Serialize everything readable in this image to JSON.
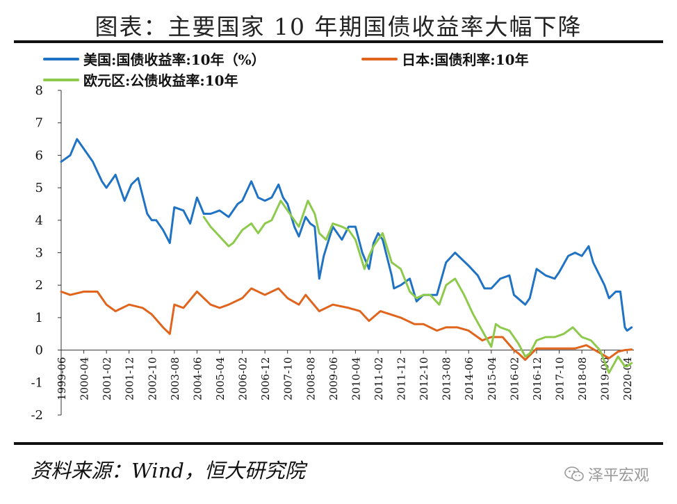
{
  "title": "图表：主要国家 10 年期国债收益率大幅下降",
  "source": "资料来源：Wind，恒大研究院",
  "watermark": "泽平宏观",
  "chart_data": {
    "type": "line",
    "x_labels": [
      "1999-06",
      "2000-04",
      "2001-02",
      "2001-12",
      "2002-10",
      "2003-08",
      "2004-06",
      "2005-04",
      "2006-02",
      "2006-12",
      "2007-10",
      "2008-08",
      "2009-06",
      "2010-04",
      "2011-02",
      "2011-12",
      "2012-10",
      "2013-08",
      "2014-06",
      "2015-04",
      "2016-02",
      "2016-12",
      "2017-10",
      "2018-08",
      "2019-06",
      "2020-04"
    ],
    "ylim": [
      -2,
      8
    ],
    "yticks": [
      -2,
      -1,
      0,
      1,
      2,
      3,
      4,
      5,
      6,
      7,
      8
    ],
    "series": [
      {
        "name": "美国:国债收益率:10年（%）",
        "color": "#1f72c4",
        "x": [
          "1999-06",
          "1999-10",
          "2000-01",
          "2000-04",
          "2000-08",
          "2000-12",
          "2001-02",
          "2001-06",
          "2001-10",
          "2002-01",
          "2002-04",
          "2002-08",
          "2002-10",
          "2002-12",
          "2003-03",
          "2003-06",
          "2003-08",
          "2003-12",
          "2004-03",
          "2004-06",
          "2004-09",
          "2004-12",
          "2005-04",
          "2005-08",
          "2005-12",
          "2006-02",
          "2006-06",
          "2006-09",
          "2006-12",
          "2007-03",
          "2007-06",
          "2007-08",
          "2007-10",
          "2008-01",
          "2008-03",
          "2008-06",
          "2008-08",
          "2008-10",
          "2008-12",
          "2009-02",
          "2009-06",
          "2009-10",
          "2010-01",
          "2010-04",
          "2010-07",
          "2010-10",
          "2010-12",
          "2011-02",
          "2011-04",
          "2011-08",
          "2011-09",
          "2011-12",
          "2012-04",
          "2012-07",
          "2012-10",
          "2012-12",
          "2013-04",
          "2013-08",
          "2013-12",
          "2014-06",
          "2014-10",
          "2015-01",
          "2015-04",
          "2015-08",
          "2015-12",
          "2016-02",
          "2016-07",
          "2016-09",
          "2016-12",
          "2017-04",
          "2017-08",
          "2017-10",
          "2018-02",
          "2018-05",
          "2018-08",
          "2018-11",
          "2019-01",
          "2019-06",
          "2019-08",
          "2019-11",
          "2020-01",
          "2020-03",
          "2020-04",
          "2020-06"
        ],
        "values": [
          5.8,
          6.0,
          6.5,
          6.2,
          5.8,
          5.2,
          5.0,
          5.4,
          4.6,
          5.1,
          5.3,
          4.2,
          4.0,
          4.0,
          3.7,
          3.3,
          4.4,
          4.3,
          3.9,
          4.7,
          4.2,
          4.2,
          4.3,
          4.1,
          4.5,
          4.6,
          5.2,
          4.7,
          4.6,
          4.7,
          5.1,
          4.7,
          4.5,
          3.8,
          3.5,
          4.1,
          3.9,
          3.8,
          2.2,
          2.9,
          3.8,
          3.4,
          3.8,
          3.8,
          3.0,
          2.5,
          3.3,
          3.6,
          3.4,
          2.3,
          1.9,
          2.0,
          2.2,
          1.5,
          1.7,
          1.7,
          1.7,
          2.7,
          3.0,
          2.6,
          2.3,
          1.9,
          1.9,
          2.2,
          2.3,
          1.7,
          1.4,
          1.6,
          2.5,
          2.3,
          2.2,
          2.4,
          2.9,
          3.0,
          2.9,
          3.2,
          2.7,
          2.0,
          1.6,
          1.8,
          1.8,
          0.7,
          0.6,
          0.7
        ]
      },
      {
        "name": "日本:国债利率:10年",
        "color": "#e0641c",
        "x": [
          "1999-06",
          "1999-10",
          "2000-04",
          "2000-10",
          "2001-02",
          "2001-06",
          "2001-12",
          "2002-06",
          "2002-10",
          "2003-03",
          "2003-06",
          "2003-08",
          "2003-12",
          "2004-06",
          "2004-12",
          "2005-04",
          "2005-08",
          "2006-02",
          "2006-06",
          "2006-12",
          "2007-06",
          "2007-10",
          "2008-03",
          "2008-06",
          "2008-12",
          "2009-06",
          "2010-01",
          "2010-06",
          "2010-10",
          "2011-03",
          "2011-12",
          "2012-06",
          "2012-10",
          "2013-04",
          "2013-08",
          "2014-01",
          "2014-06",
          "2014-12",
          "2015-04",
          "2015-09",
          "2016-02",
          "2016-04",
          "2016-07",
          "2016-12",
          "2017-06",
          "2017-10",
          "2018-05",
          "2018-10",
          "2019-03",
          "2019-08",
          "2019-12",
          "2020-03",
          "2020-06"
        ],
        "values": [
          1.8,
          1.7,
          1.8,
          1.8,
          1.4,
          1.2,
          1.4,
          1.3,
          1.1,
          0.7,
          0.5,
          1.4,
          1.3,
          1.8,
          1.4,
          1.3,
          1.4,
          1.6,
          1.9,
          1.7,
          1.9,
          1.6,
          1.4,
          1.7,
          1.2,
          1.4,
          1.3,
          1.2,
          0.9,
          1.2,
          1.0,
          0.8,
          0.8,
          0.6,
          0.7,
          0.7,
          0.6,
          0.3,
          0.4,
          0.4,
          0.0,
          -0.1,
          -0.3,
          0.05,
          0.05,
          0.05,
          0.05,
          0.15,
          -0.05,
          -0.25,
          -0.05,
          0.0,
          0.02
        ]
      },
      {
        "name": "欧元区:公债收益率:10年",
        "color": "#8dca4c",
        "x": [
          "2004-09",
          "2004-12",
          "2005-04",
          "2005-08",
          "2005-10",
          "2006-02",
          "2006-06",
          "2006-09",
          "2006-12",
          "2007-03",
          "2007-07",
          "2007-10",
          "2008-01",
          "2008-03",
          "2008-07",
          "2008-10",
          "2008-12",
          "2009-03",
          "2009-06",
          "2009-10",
          "2010-01",
          "2010-04",
          "2010-08",
          "2010-10",
          "2010-12",
          "2011-04",
          "2011-08",
          "2011-12",
          "2012-04",
          "2012-07",
          "2012-10",
          "2013-01",
          "2013-05",
          "2013-08",
          "2013-12",
          "2014-04",
          "2014-08",
          "2014-12",
          "2015-04",
          "2015-06",
          "2015-08",
          "2015-12",
          "2016-04",
          "2016-07",
          "2016-09",
          "2016-12",
          "2017-04",
          "2017-08",
          "2017-12",
          "2018-04",
          "2018-08",
          "2018-12",
          "2019-04",
          "2019-08",
          "2019-12",
          "2020-03",
          "2020-04",
          "2020-06"
        ],
        "values": [
          4.1,
          3.8,
          3.5,
          3.2,
          3.3,
          3.7,
          3.9,
          3.6,
          3.9,
          4.0,
          4.6,
          4.3,
          4.0,
          3.8,
          4.6,
          4.2,
          3.6,
          3.4,
          3.9,
          3.8,
          3.7,
          3.4,
          2.5,
          2.9,
          3.2,
          3.6,
          2.7,
          2.5,
          1.8,
          1.6,
          1.7,
          1.7,
          1.4,
          2.0,
          2.2,
          1.7,
          1.1,
          0.6,
          0.1,
          0.8,
          0.7,
          0.6,
          0.2,
          -0.2,
          -0.1,
          0.3,
          0.4,
          0.4,
          0.5,
          0.7,
          0.4,
          0.3,
          0.0,
          -0.7,
          -0.2,
          -0.5,
          -0.5,
          -0.4
        ]
      }
    ]
  }
}
